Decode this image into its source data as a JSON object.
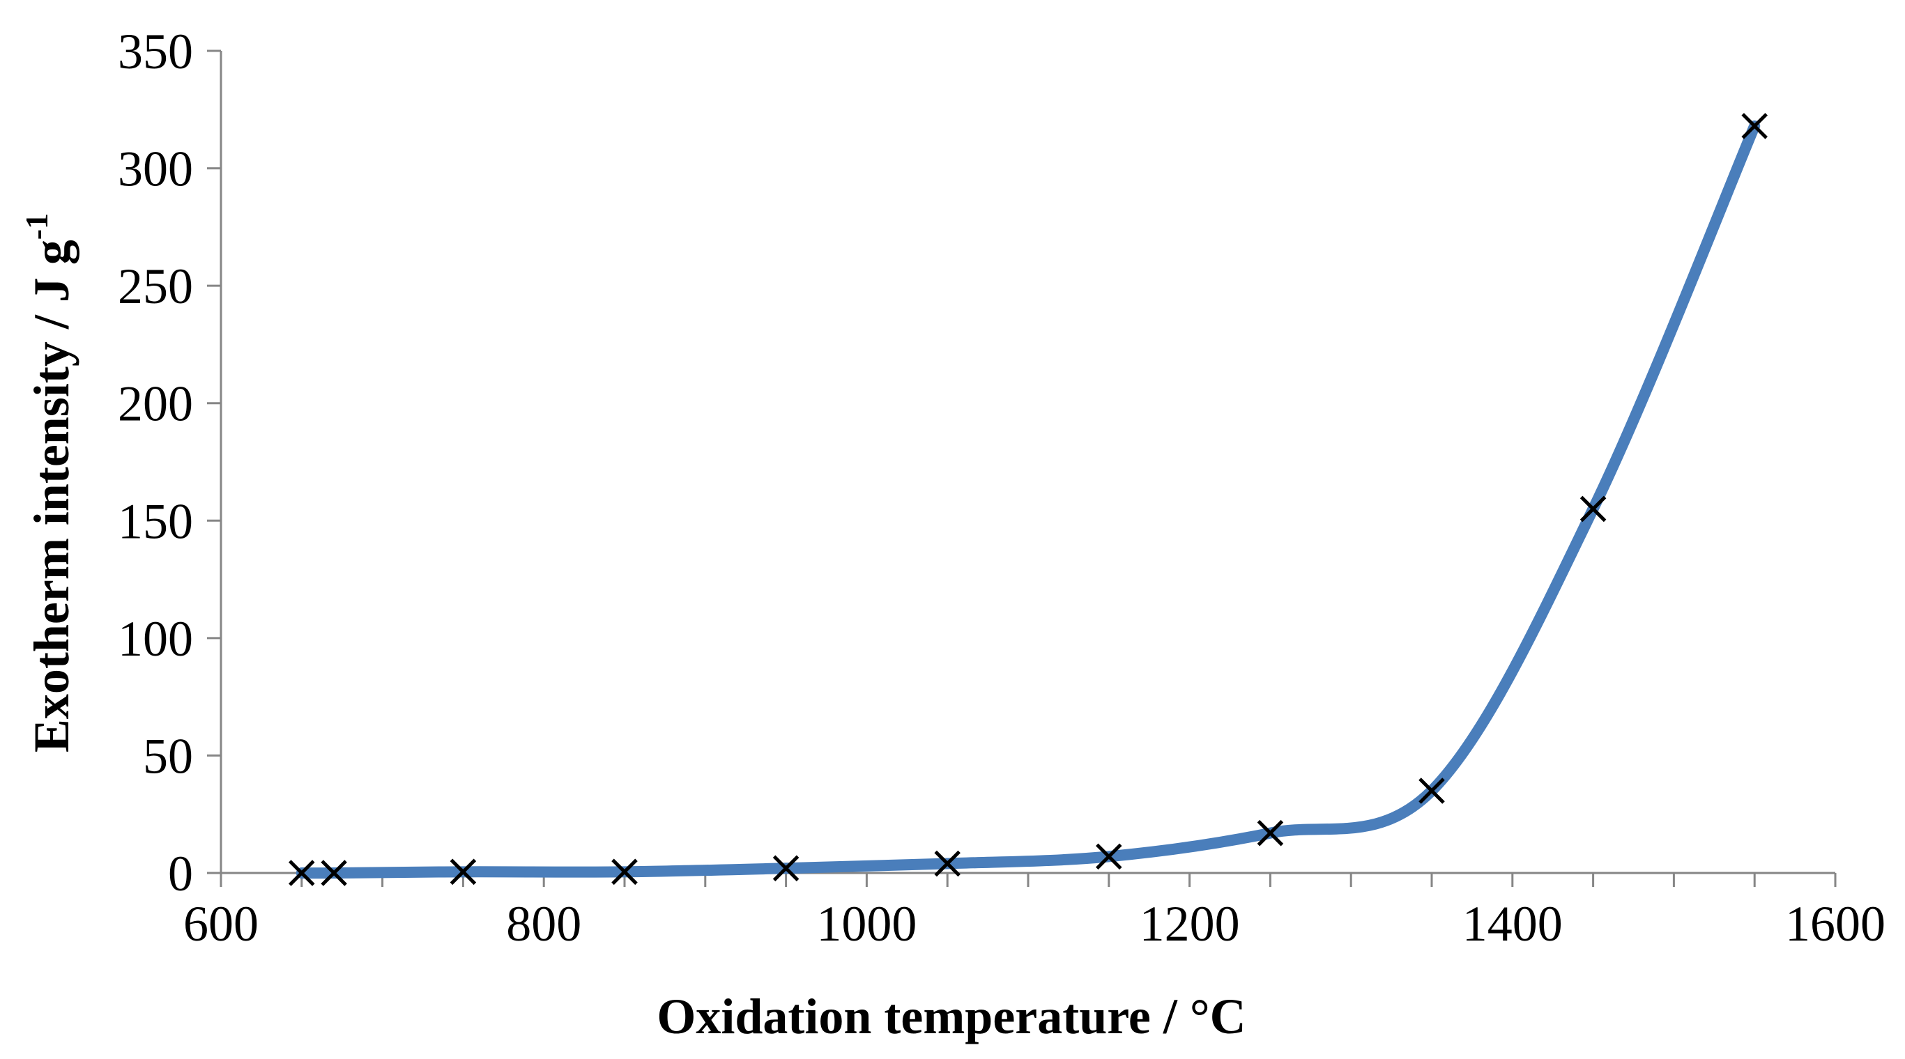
{
  "chart_data": {
    "type": "line",
    "title": "",
    "xlabel": "Oxidation temperature / °C",
    "ylabel": "Exotherm intensity / J g",
    "ylabel_superscript": "-1",
    "xlim": [
      600,
      1600
    ],
    "ylim": [
      0,
      350
    ],
    "x_major_ticks": [
      600,
      800,
      1000,
      1200,
      1400,
      1600
    ],
    "x_minor_step": 50,
    "y_ticks": [
      0,
      50,
      100,
      150,
      200,
      250,
      300,
      350
    ],
    "grid": false,
    "legend": "none",
    "series": [
      {
        "x": [
          650,
          670,
          750,
          850,
          950,
          1050,
          1150,
          1250,
          1350,
          1450,
          1550
        ],
        "y": [
          0,
          0,
          0.5,
          0.5,
          2,
          4,
          7,
          17,
          35,
          155,
          318
        ],
        "line_color": "#4a7ebb",
        "marker": "x",
        "marker_color": "#000000",
        "smooth": true
      }
    ],
    "axis_color": "#868686"
  }
}
